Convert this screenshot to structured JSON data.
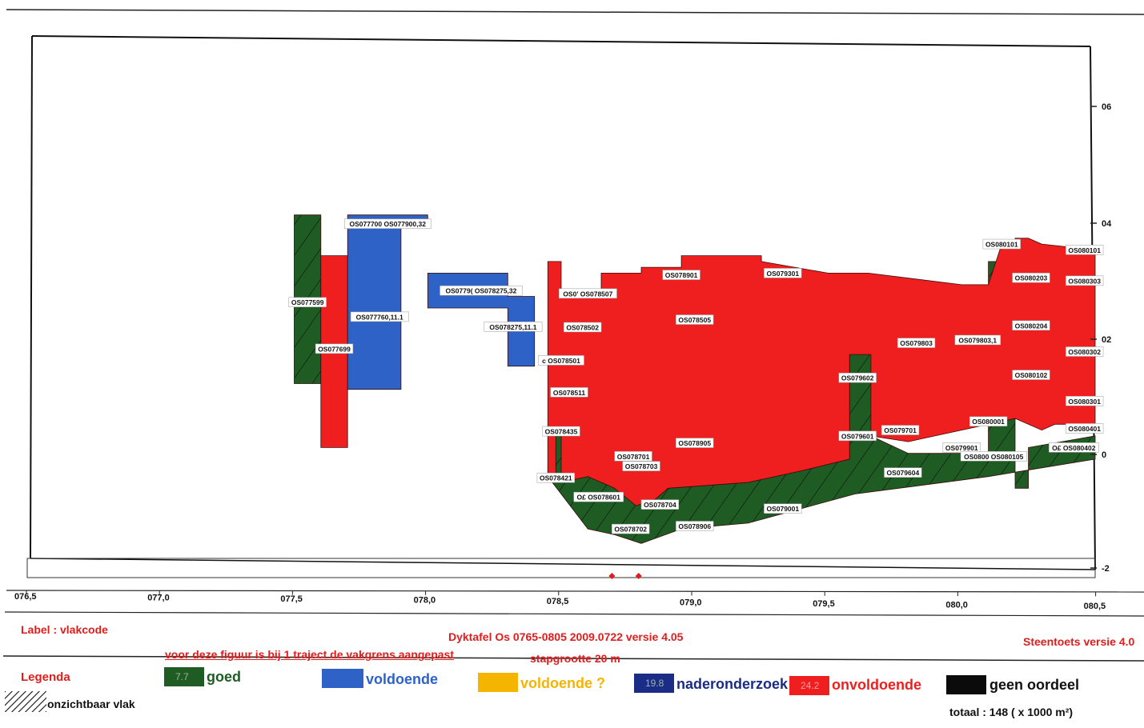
{
  "chart_data": {
    "type": "area",
    "x_ticks": [
      "076,5",
      "077,0",
      "077,5",
      "078,0",
      "078,5",
      "079,0",
      "079,5",
      "080,0",
      "080,5"
    ],
    "y_ticks": [
      "06",
      "04",
      "02",
      "0",
      "-2"
    ],
    "xlim": [
      76.5,
      80.5
    ],
    "ylim": [
      -2,
      7
    ],
    "grid": false,
    "polygons": [
      {
        "cls": "goed",
        "pts": [
          [
            77.5,
            4.1
          ],
          [
            77.6,
            4.1
          ],
          [
            77.6,
            1.2
          ],
          [
            77.5,
            1.2
          ]
        ]
      },
      {
        "cls": "onvoldoende",
        "pts": [
          [
            77.6,
            3.4
          ],
          [
            77.7,
            3.4
          ],
          [
            77.7,
            0.1
          ],
          [
            77.6,
            0.1
          ]
        ]
      },
      {
        "cls": "voldoende",
        "pts": [
          [
            77.7,
            4.1
          ],
          [
            78.0,
            4.1
          ],
          [
            78.0,
            3.9
          ],
          [
            77.9,
            3.9
          ],
          [
            77.9,
            1.1
          ],
          [
            77.7,
            1.1
          ]
        ]
      },
      {
        "cls": "voldoende",
        "pts": [
          [
            78.0,
            3.1
          ],
          [
            78.3,
            3.1
          ],
          [
            78.3,
            2.7
          ],
          [
            78.4,
            2.7
          ],
          [
            78.4,
            1.5
          ],
          [
            78.3,
            1.5
          ],
          [
            78.3,
            2.5
          ],
          [
            78.0,
            2.5
          ]
        ]
      },
      {
        "cls": "goed",
        "pts": [
          [
            78.45,
            0.4
          ],
          [
            78.7,
            0.0
          ],
          [
            78.9,
            -0.6
          ],
          [
            79.2,
            -0.5
          ],
          [
            79.4,
            -0.3
          ],
          [
            79.58,
            -0.1
          ],
          [
            79.58,
            1.7
          ],
          [
            79.66,
            1.7
          ],
          [
            79.66,
            0.3
          ],
          [
            79.8,
            0.0
          ],
          [
            80.1,
            0.0
          ],
          [
            80.1,
            3.3
          ],
          [
            80.2,
            3.3
          ],
          [
            80.2,
            -0.6
          ],
          [
            80.25,
            -0.6
          ],
          [
            80.25,
            0.1
          ],
          [
            80.5,
            0.3
          ],
          [
            80.5,
            -0.1
          ],
          [
            80.1,
            -0.4
          ],
          [
            79.6,
            -0.7
          ],
          [
            79.2,
            -1.2
          ],
          [
            78.95,
            -1.3
          ],
          [
            78.8,
            -1.55
          ],
          [
            78.7,
            -1.4
          ],
          [
            78.6,
            -1.3
          ],
          [
            78.45,
            -0.4
          ]
        ]
      },
      {
        "cls": "onvoldoende",
        "pts": [
          [
            78.45,
            3.3
          ],
          [
            78.5,
            3.3
          ],
          [
            78.5,
            2.8
          ],
          [
            78.65,
            2.8
          ],
          [
            78.65,
            3.1
          ],
          [
            78.8,
            3.1
          ],
          [
            78.8,
            3.2
          ],
          [
            78.95,
            3.2
          ],
          [
            78.95,
            3.4
          ],
          [
            79.25,
            3.4
          ],
          [
            79.25,
            3.3
          ],
          [
            79.5,
            3.1
          ],
          [
            79.65,
            3.1
          ],
          [
            80.0,
            2.9
          ],
          [
            80.1,
            2.9
          ],
          [
            80.15,
            3.6
          ],
          [
            80.2,
            3.6
          ],
          [
            80.2,
            3.7
          ],
          [
            80.25,
            3.7
          ],
          [
            80.3,
            3.6
          ],
          [
            80.5,
            3.5
          ],
          [
            80.5,
            0.5
          ],
          [
            80.35,
            0.5
          ],
          [
            80.3,
            0.4
          ],
          [
            80.2,
            0.6
          ],
          [
            80.1,
            0.5
          ],
          [
            80.0,
            0.4
          ],
          [
            79.8,
            0.2
          ],
          [
            79.66,
            0.3
          ],
          [
            79.66,
            1.7
          ],
          [
            79.58,
            1.7
          ],
          [
            79.58,
            -0.1
          ],
          [
            79.4,
            -0.3
          ],
          [
            79.2,
            -0.5
          ],
          [
            78.9,
            -0.6
          ],
          [
            78.85,
            -0.8
          ],
          [
            78.78,
            -0.9
          ],
          [
            78.7,
            -0.6
          ],
          [
            78.6,
            -0.4
          ],
          [
            78.5,
            -0.5
          ],
          [
            78.5,
            0.4
          ],
          [
            78.48,
            0.4
          ],
          [
            78.48,
            -0.5
          ],
          [
            78.45,
            -0.5
          ]
        ]
      }
    ],
    "vak_labels": [
      {
        "t": "OS077700 OS077900,32",
        "x": 77.85,
        "y": 3.95
      },
      {
        "t": "OS077599",
        "x": 77.55,
        "y": 2.6
      },
      {
        "t": "OS077760,11.1",
        "x": 77.82,
        "y": 2.35
      },
      {
        "t": "OS077699",
        "x": 77.65,
        "y": 1.8
      },
      {
        "t": "OS0779( OS078275,32",
        "x": 78.2,
        "y": 2.8
      },
      {
        "t": "OS078275,11.1",
        "x": 78.32,
        "y": 2.18
      },
      {
        "t": "OS0' OS078507",
        "x": 78.6,
        "y": 2.75
      },
      {
        "t": "OS078502",
        "x": 78.58,
        "y": 2.17
      },
      {
        "t": "c OS078501",
        "x": 78.5,
        "y": 1.6
      },
      {
        "t": "OS078511",
        "x": 78.53,
        "y": 1.05
      },
      {
        "t": "OS078435",
        "x": 78.5,
        "y": 0.38
      },
      {
        "t": "OS078421",
        "x": 78.48,
        "y": -0.42
      },
      {
        "t": "OS078701",
        "x": 78.77,
        "y": -0.05
      },
      {
        "t": "OS078703",
        "x": 78.8,
        "y": -0.22
      },
      {
        "t": "O£ OS078601",
        "x": 78.64,
        "y": -0.75
      },
      {
        "t": "OS078704",
        "x": 78.87,
        "y": -0.88
      },
      {
        "t": "OS078702",
        "x": 78.76,
        "y": -1.3
      },
      {
        "t": "OS078906",
        "x": 79.0,
        "y": -1.25
      },
      {
        "t": "OS078905",
        "x": 79.0,
        "y": 0.18
      },
      {
        "t": "OS078901",
        "x": 78.95,
        "y": 3.07
      },
      {
        "t": "OS079301",
        "x": 79.33,
        "y": 3.1
      },
      {
        "t": "OS078505",
        "x": 79.0,
        "y": 2.3
      },
      {
        "t": "OS079001",
        "x": 79.33,
        "y": -0.95
      },
      {
        "t": "OS079602",
        "x": 79.61,
        "y": 1.3
      },
      {
        "t": "OS079601",
        "x": 79.61,
        "y": 0.3
      },
      {
        "t": "OS079701",
        "x": 79.77,
        "y": 0.4
      },
      {
        "t": "OS079604",
        "x": 79.78,
        "y": -0.33
      },
      {
        "t": "OS079803",
        "x": 79.83,
        "y": 1.9
      },
      {
        "t": "OS079803,1",
        "x": 80.06,
        "y": 1.95
      },
      {
        "t": "OS079901",
        "x": 80.0,
        "y": 0.1
      },
      {
        "t": "OS0800 OS080105",
        "x": 80.12,
        "y": -0.05
      },
      {
        "t": "OS080001",
        "x": 80.1,
        "y": 0.55
      },
      {
        "t": "OS080101",
        "x": 80.15,
        "y": 3.6
      },
      {
        "t": "OS080203",
        "x": 80.26,
        "y": 3.02
      },
      {
        "t": "OS080204",
        "x": 80.26,
        "y": 2.2
      },
      {
        "t": "OS080102",
        "x": 80.26,
        "y": 1.35
      },
      {
        "t": "OS080101",
        "x": 80.46,
        "y": 3.5
      },
      {
        "t": "OS080303",
        "x": 80.46,
        "y": 2.97
      },
      {
        "t": "OS080302",
        "x": 80.46,
        "y": 1.75
      },
      {
        "t": "OS080301",
        "x": 80.46,
        "y": 0.9
      },
      {
        "t": "OS080401",
        "x": 80.46,
        "y": 0.43
      },
      {
        "t": "O£ OS080402",
        "x": 80.42,
        "y": 0.1
      }
    ],
    "markers": [
      78.69,
      78.79
    ]
  },
  "colors": {
    "goed": "#1f5c24",
    "voldoende": "#2f62c7",
    "voldoende_q": "#f5b400",
    "naderonderzoek": "#1b2c86",
    "onvoldoende": "#ef1f1f",
    "geen_oordeel": "#0b0b0b"
  },
  "footer": {
    "label": "Label : vlakcode",
    "title": "Dyktafel Os 0765-0805 2009.0722 versie 4.05",
    "note": "voor deze figuur is bij 1 traject de vakgrens aangepast",
    "step": "stapgrootte 20 m",
    "steentoets": "Steentoets versie 4.0"
  },
  "legend": {
    "title": "Legenda",
    "goed": "goed",
    "goed_val": "7.7",
    "voldoende": "voldoende",
    "voldoende_q": "voldoende ?",
    "naderonderzoek": "naderonderzoek",
    "nader_val": "19.8",
    "onvoldoende": "onvoldoende",
    "onv_val": "24.2",
    "geen_oordeel": "geen oordeel",
    "onzichtbaar": "onzichtbaar vlak",
    "totaal": "totaal : 148 ( x 1000 m²)"
  }
}
